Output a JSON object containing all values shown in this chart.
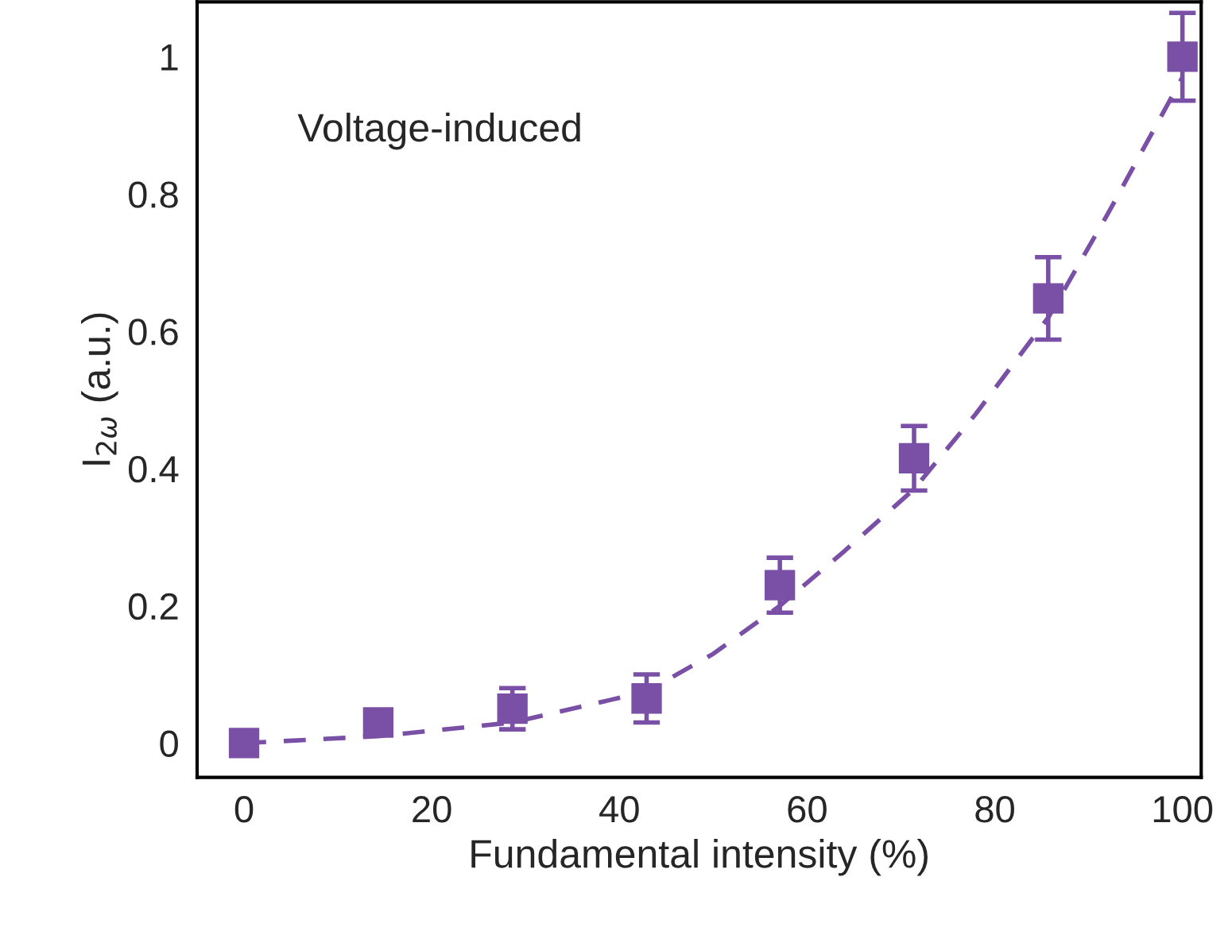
{
  "chart_data": {
    "type": "scatter",
    "xlabel": "Fundamental intensity (%)",
    "ylabel": "I$_{2ω}$ (a.u.)",
    "xlim": [
      -5,
      102
    ],
    "ylim": [
      -0.05,
      1.08
    ],
    "xticks": [
      0,
      20,
      40,
      60,
      80,
      100
    ],
    "yticks": [
      0,
      0.2,
      0.4,
      0.6,
      0.8,
      1
    ],
    "grid": false,
    "legend": false,
    "annotations": [
      "Voltage-induced"
    ],
    "series": [
      {
        "color": "#7a4fa6",
        "marker": "square",
        "x": [
          0,
          14.3,
          28.6,
          42.9,
          57.1,
          71.4,
          85.7,
          100
        ],
        "values": [
          0,
          0.03,
          0.05,
          0.065,
          0.23,
          0.415,
          0.648,
          1.0
        ],
        "errors": [
          null,
          0.015,
          0.03,
          0.035,
          0.04,
          0.047,
          0.06,
          0.064
        ]
      },
      {
        "type": "line",
        "color": "#7a4fa6",
        "line_style": "dashed",
        "marker": "none",
        "x": [
          0,
          14.3,
          28.6,
          42.9,
          50,
          57.1,
          64,
          71.4,
          78,
          85.7,
          92,
          100
        ],
        "values": [
          0,
          0.01,
          0.03,
          0.075,
          0.13,
          0.2,
          0.28,
          0.37,
          0.48,
          0.62,
          0.77,
          0.97
        ]
      }
    ]
  }
}
